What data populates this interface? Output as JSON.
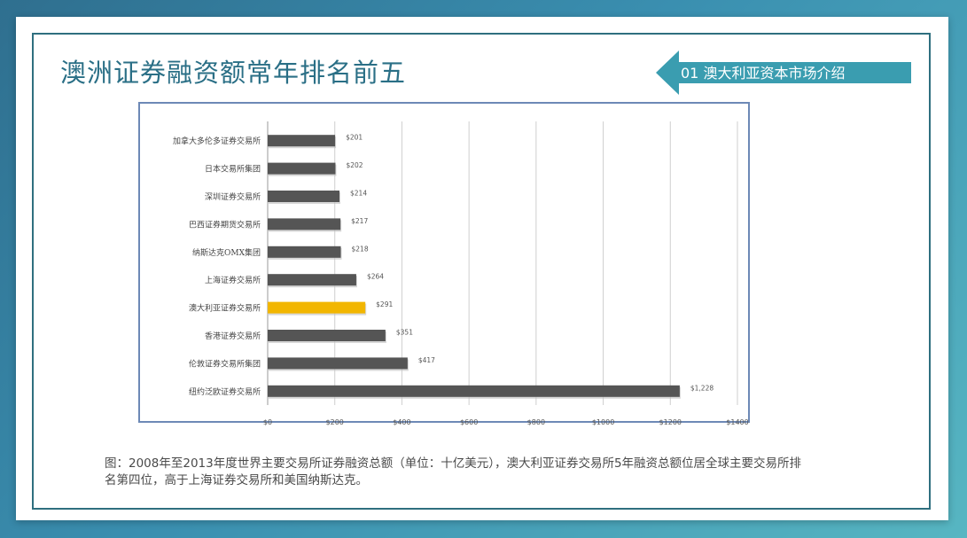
{
  "slide": {
    "title": "澳洲证券融资额常年排名前五",
    "section_tag": "01 澳大利亚资本市场介绍",
    "caption": "图：2008年至2013年度世界主要交易所证券融资总额（单位：十亿美元），澳大利亚证券交易所5年融资总额位居全球主要交易所排名第四位，高于上海证券交易所和美国纳斯达克。"
  },
  "colors": {
    "title": "#2a6f86",
    "tag_bg": "#3a9db0",
    "bar_default": "#555555",
    "bar_highlight": "#f2b600",
    "chart_border": "#6d89b6"
  },
  "chart_data": {
    "type": "bar",
    "orientation": "horizontal",
    "categories": [
      "加拿大多伦多证券交易所",
      "日本交易所集团",
      "深圳证券交易所",
      "巴西证券期货交易所",
      "纳斯达克OMX集团",
      "上海证券交易所",
      "澳大利亚证券交易所",
      "香港证券交易所",
      "伦敦证券交易所集团",
      "纽约泛欧证券交易所"
    ],
    "values": [
      201,
      202,
      214,
      217,
      218,
      264,
      291,
      351,
      417,
      1228
    ],
    "value_labels": [
      "$201",
      "$202",
      "$214",
      "$217",
      "$218",
      "$264",
      "$291",
      "$351",
      "$417",
      "$1,228"
    ],
    "highlight_index": 6,
    "xlim": [
      0,
      1400
    ],
    "xticks": [
      0,
      200,
      400,
      600,
      800,
      1000,
      1200,
      1400
    ],
    "xtick_labels": [
      "$0",
      "$200",
      "$400",
      "$600",
      "$800",
      "$1000",
      "$1200",
      "$1400"
    ],
    "grid": true,
    "title": "",
    "xlabel": "",
    "ylabel": ""
  }
}
